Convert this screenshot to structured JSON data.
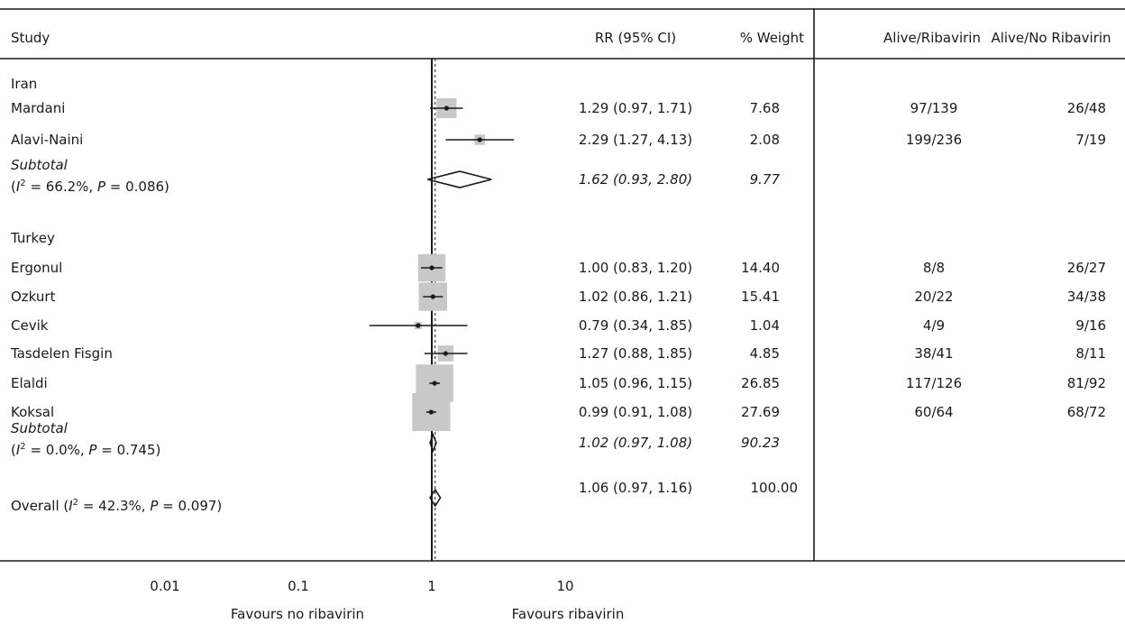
{
  "chart_data": {
    "type": "forest",
    "columns": {
      "study": "Study",
      "rr": "RR (95% CI)",
      "weight": "% Weight",
      "alive_riba": "Alive/Ribavirin",
      "alive_no_riba": "Alive/No Ribavirin"
    },
    "x_axis": {
      "scale": "log",
      "ticks": [
        0.01,
        0.1,
        1,
        10
      ],
      "tick_labels": [
        "0.01",
        "0.1",
        "1",
        "10"
      ],
      "range": [
        0.004,
        16
      ],
      "null_value": 1,
      "overall_reference": 1.06,
      "label_left": "Favours no ribavirin",
      "label_right": "Favours ribavirin"
    },
    "rows": [
      {
        "kind": "group",
        "label": "Iran"
      },
      {
        "kind": "study",
        "label": "Mardani",
        "rr": 1.29,
        "lo": 0.97,
        "hi": 1.71,
        "rr_text": "1.29 (0.97, 1.71)",
        "weight_text": "7.68",
        "weight": 7.68,
        "alive_riba": "97/139",
        "alive_no_riba": "26/48"
      },
      {
        "kind": "study",
        "label": "Alavi-Naini",
        "rr": 2.29,
        "lo": 1.27,
        "hi": 4.13,
        "rr_text": "2.29 (1.27, 4.13)",
        "weight_text": "2.08",
        "weight": 2.08,
        "alive_riba": "199/236",
        "alive_no_riba": "7/19"
      },
      {
        "kind": "subtotal",
        "label": "Subtotal",
        "het_i2": "66.2%",
        "het_p": "0.086",
        "rr": 1.62,
        "lo": 0.93,
        "hi": 2.8,
        "rr_text": "1.62 (0.93, 2.80)",
        "weight_text": "9.77"
      },
      {
        "kind": "group",
        "label": "Turkey"
      },
      {
        "kind": "study",
        "label": "Ergonul",
        "rr": 1.0,
        "lo": 0.83,
        "hi": 1.2,
        "rr_text": "1.00 (0.83, 1.20)",
        "weight_text": "14.40",
        "weight": 14.4,
        "alive_riba": "8/8",
        "alive_no_riba": "26/27"
      },
      {
        "kind": "study",
        "label": "Ozkurt",
        "rr": 1.02,
        "lo": 0.86,
        "hi": 1.21,
        "rr_text": "1.02 (0.86, 1.21)",
        "weight_text": "15.41",
        "weight": 15.41,
        "alive_riba": "20/22",
        "alive_no_riba": "34/38"
      },
      {
        "kind": "study",
        "label": "Cevik",
        "rr": 0.79,
        "lo": 0.34,
        "hi": 1.85,
        "rr_text": "0.79 (0.34, 1.85)",
        "weight_text": "1.04",
        "weight": 1.04,
        "alive_riba": "4/9",
        "alive_no_riba": "9/16"
      },
      {
        "kind": "study",
        "label": "Tasdelen Fisgin",
        "rr": 1.27,
        "lo": 0.88,
        "hi": 1.85,
        "rr_text": "1.27 (0.88, 1.85)",
        "weight_text": "4.85",
        "weight": 4.85,
        "alive_riba": "38/41",
        "alive_no_riba": "8/11"
      },
      {
        "kind": "study",
        "label": "Elaldi",
        "rr": 1.05,
        "lo": 0.96,
        "hi": 1.15,
        "rr_text": "1.05 (0.96, 1.15)",
        "weight_text": "26.85",
        "weight": 26.85,
        "alive_riba": "117/126",
        "alive_no_riba": "81/92"
      },
      {
        "kind": "study",
        "label": "Koksal",
        "rr": 0.99,
        "lo": 0.91,
        "hi": 1.08,
        "rr_text": "0.99 (0.91, 1.08)",
        "weight_text": "27.69",
        "weight": 27.69,
        "alive_riba": "60/64",
        "alive_no_riba": "68/72"
      },
      {
        "kind": "subtotal",
        "label": "Subtotal",
        "het_i2": "0.0%",
        "het_p": "0.745",
        "rr": 1.02,
        "lo": 0.97,
        "hi": 1.08,
        "rr_text": "1.02 (0.97, 1.08)",
        "weight_text": "90.23"
      },
      {
        "kind": "overall",
        "label": "Overall",
        "het_i2": "42.3%",
        "het_p": "0.097",
        "rr": 1.06,
        "lo": 0.97,
        "hi": 1.16,
        "rr_text": "1.06 (0.97, 1.16)",
        "weight_text": "100.00"
      }
    ],
    "colors": {
      "text": "#1a1a1a",
      "weight_box": "#c8c8c8",
      "line": "#1a1a1a"
    }
  }
}
